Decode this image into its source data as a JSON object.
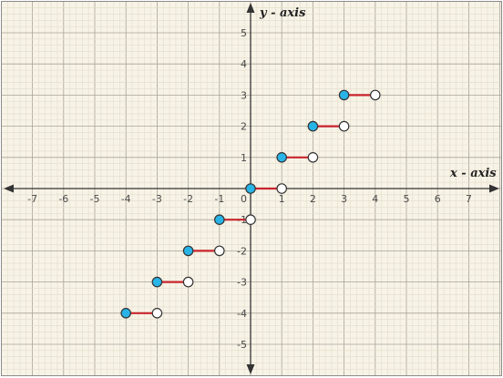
{
  "colors": {
    "background": "#f7f3e6",
    "grid_minor": "#e3dccb",
    "grid_major": "#a9a397",
    "axis": "#333333",
    "segment": "#c8242c",
    "closed_point": "#29b4e8",
    "open_point": "#ffffff",
    "point_outline": "#333333"
  },
  "chart_data": {
    "type": "step",
    "xlabel": "x - axis",
    "ylabel": "y - axis",
    "xlim": [
      -8,
      8
    ],
    "ylim": [
      -6,
      6
    ],
    "x_ticks": [
      -7,
      -6,
      -5,
      -4,
      -3,
      -2,
      -1,
      1,
      2,
      3,
      4,
      5,
      6,
      7
    ],
    "y_ticks": [
      -5,
      -4,
      -3,
      -2,
      -1,
      1,
      2,
      3,
      4,
      5
    ],
    "origin_label": "0",
    "grid": true,
    "segments": [
      {
        "x_start": -4,
        "x_end": -3,
        "y": -4,
        "start_closed": true,
        "end_closed": false
      },
      {
        "x_start": -3,
        "x_end": -2,
        "y": -3,
        "start_closed": true,
        "end_closed": false
      },
      {
        "x_start": -2,
        "x_end": -1,
        "y": -2,
        "start_closed": true,
        "end_closed": false
      },
      {
        "x_start": -1,
        "x_end": 0,
        "y": -1,
        "start_closed": true,
        "end_closed": false
      },
      {
        "x_start": 0,
        "x_end": 1,
        "y": 0,
        "start_closed": true,
        "end_closed": false
      },
      {
        "x_start": 1,
        "x_end": 2,
        "y": 1,
        "start_closed": true,
        "end_closed": false
      },
      {
        "x_start": 2,
        "x_end": 3,
        "y": 2,
        "start_closed": true,
        "end_closed": false
      },
      {
        "x_start": 3,
        "x_end": 4,
        "y": 3,
        "start_closed": true,
        "end_closed": false
      }
    ]
  }
}
